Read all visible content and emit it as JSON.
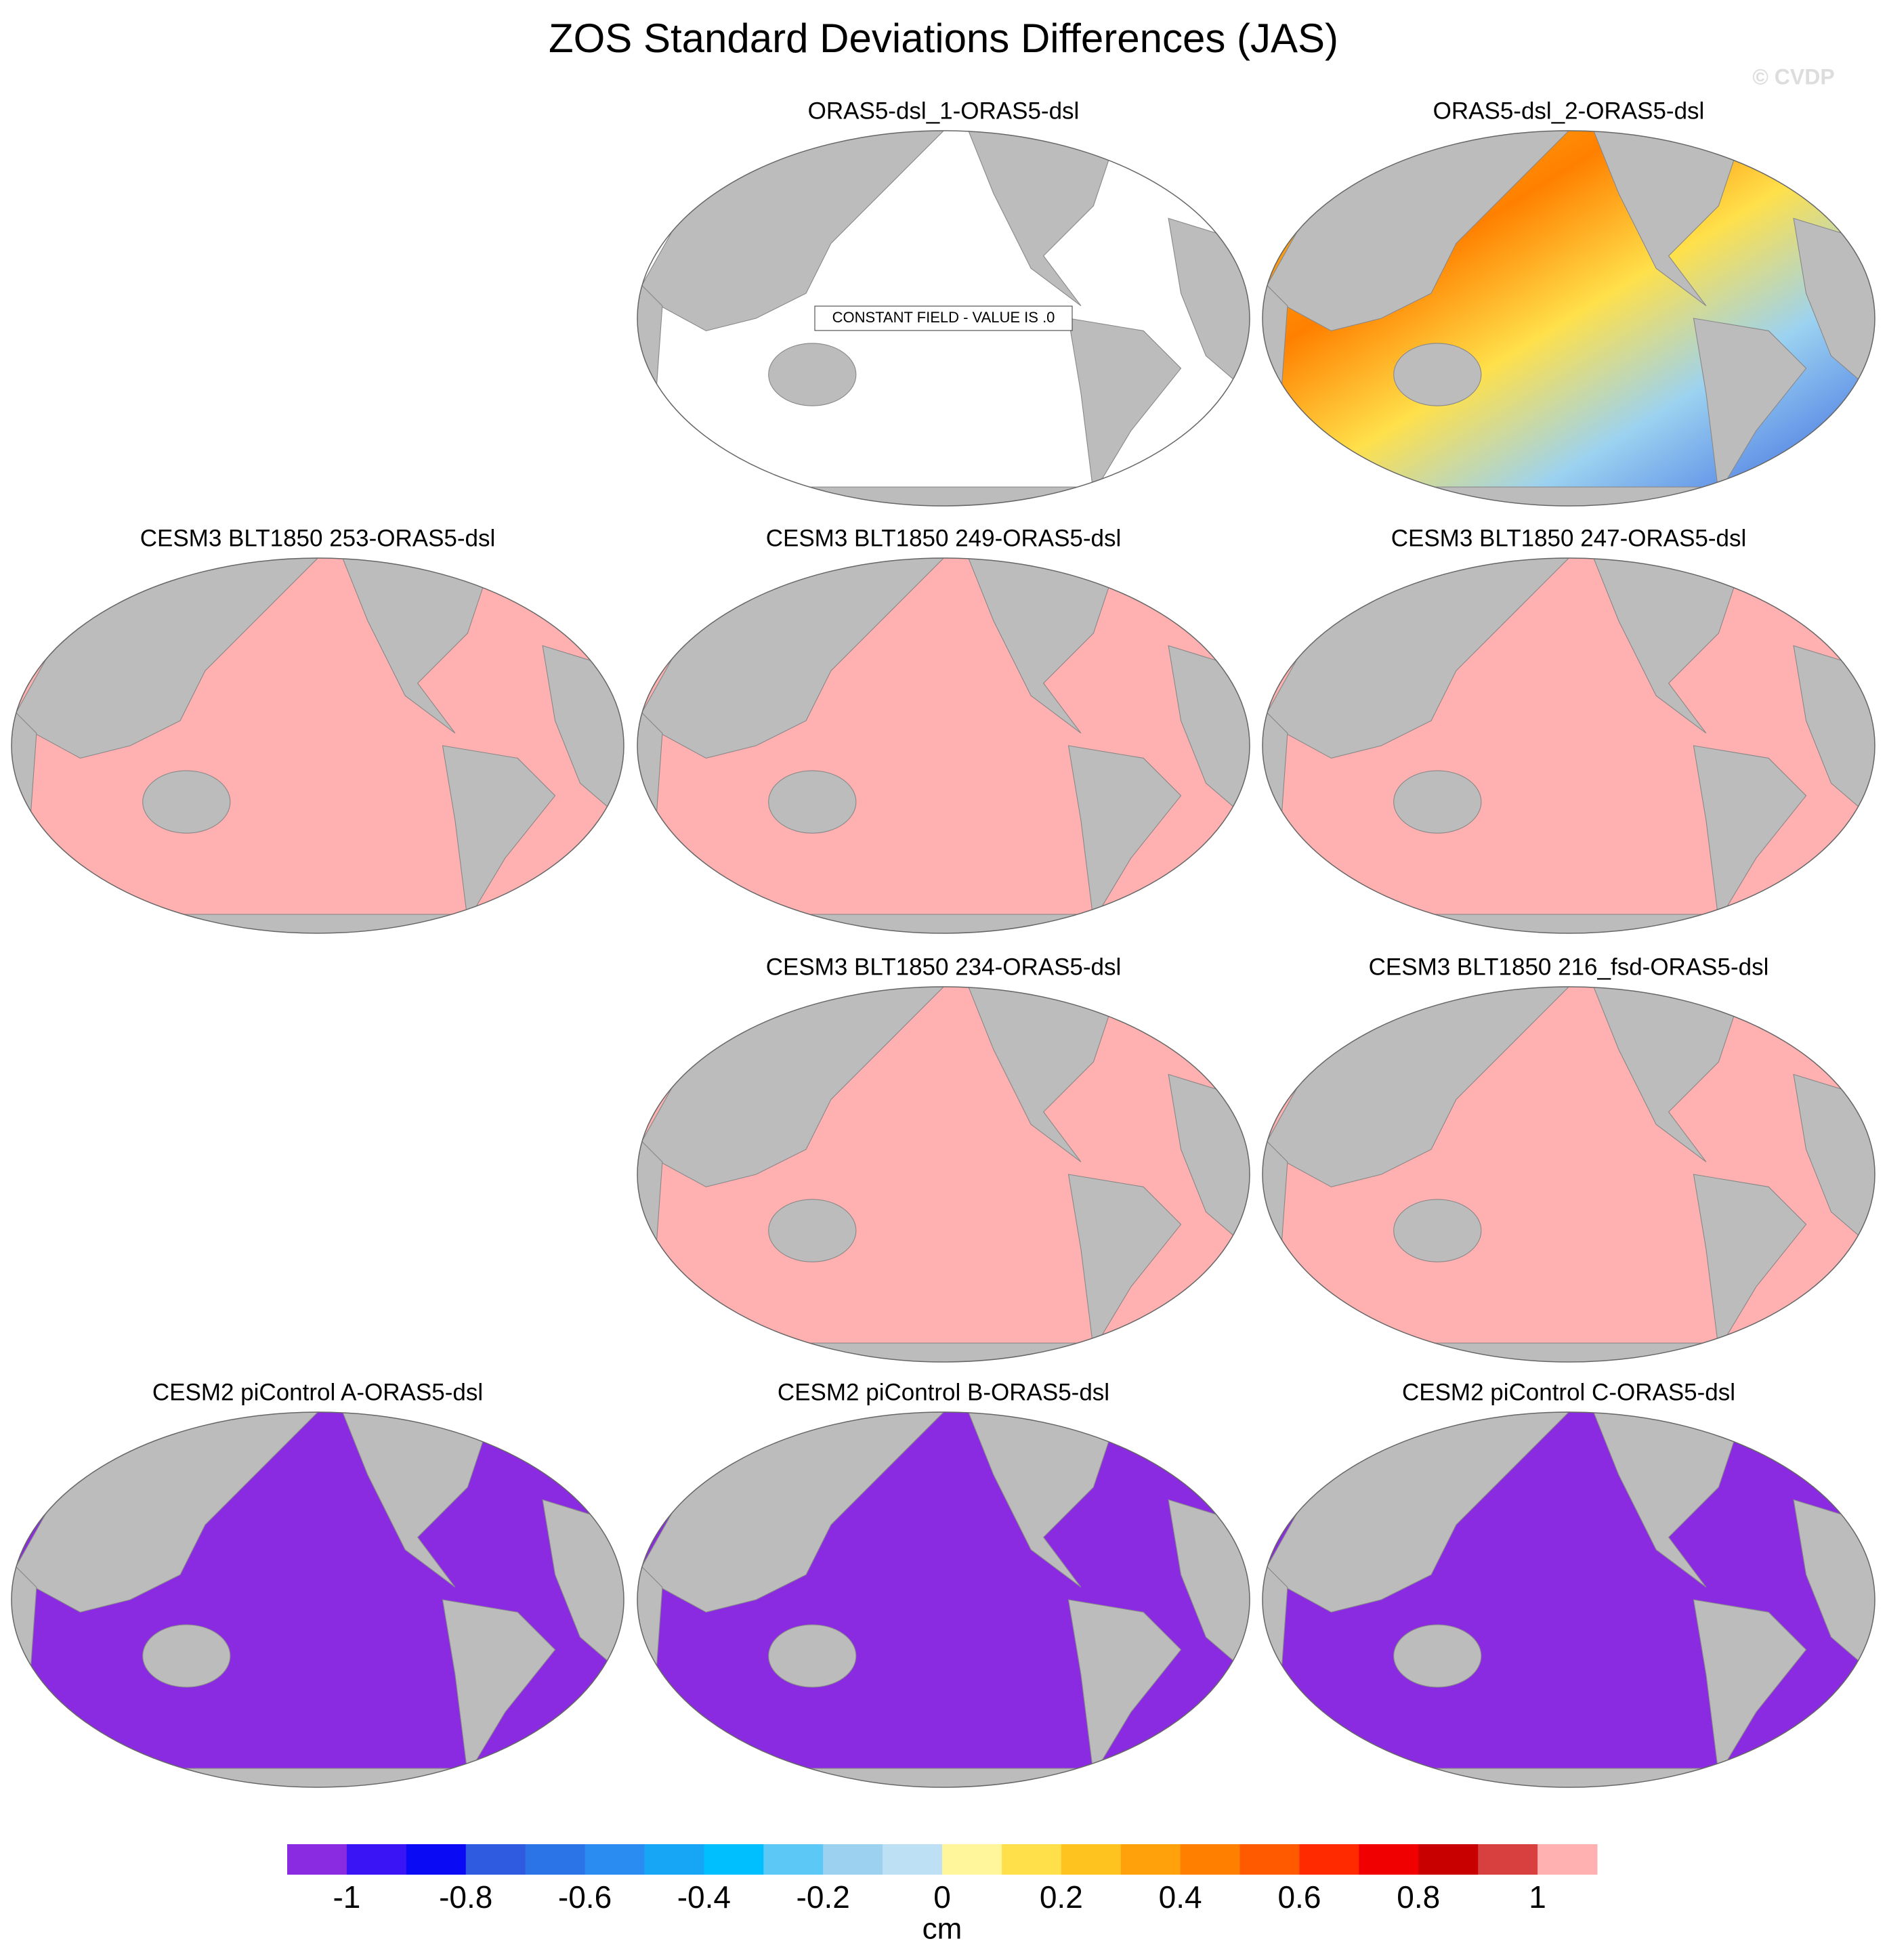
{
  "title": "ZOS Standard Deviations Differences (JAS)",
  "watermark": "© CVDP",
  "panels": [
    {
      "title": "ORAS5-dsl_1-ORAS5-dsl",
      "note": "CONSTANT FIELD - VALUE IS .0"
    },
    {
      "title": "ORAS5-dsl_2-ORAS5-dsl"
    },
    {
      "title": "CESM3 BLT1850 253-ORAS5-dsl"
    },
    {
      "title": "CESM3 BLT1850 249-ORAS5-dsl"
    },
    {
      "title": "CESM3 BLT1850 247-ORAS5-dsl"
    },
    {
      "title": "CESM3 BLT1850 234-ORAS5-dsl"
    },
    {
      "title": "CESM3 BLT1850 216_fsd-ORAS5-dsl"
    },
    {
      "title": "CESM2 piControl A-ORAS5-dsl"
    },
    {
      "title": "CESM2 piControl B-ORAS5-dsl"
    },
    {
      "title": "CESM2 piControl C-ORAS5-dsl"
    }
  ],
  "colorbar": {
    "colors": [
      "#8a2be2",
      "#3a14f5",
      "#0a0af5",
      "#2e5be0",
      "#2a74e8",
      "#2a8bf0",
      "#17a6f5",
      "#00bfff",
      "#5bc8f5",
      "#9cd2f0",
      "#bde0f5",
      "#fff59a",
      "#ffe04a",
      "#ffc31f",
      "#ffa10a",
      "#ff8000",
      "#ff5a00",
      "#ff2a00",
      "#f00000",
      "#c80000",
      "#d84040",
      "#ffb0b0"
    ],
    "ticks": [
      -1,
      -0.8,
      -0.6,
      -0.4,
      -0.2,
      0,
      0.2,
      0.4,
      0.6,
      0.8,
      1
    ],
    "label": "cm"
  }
}
